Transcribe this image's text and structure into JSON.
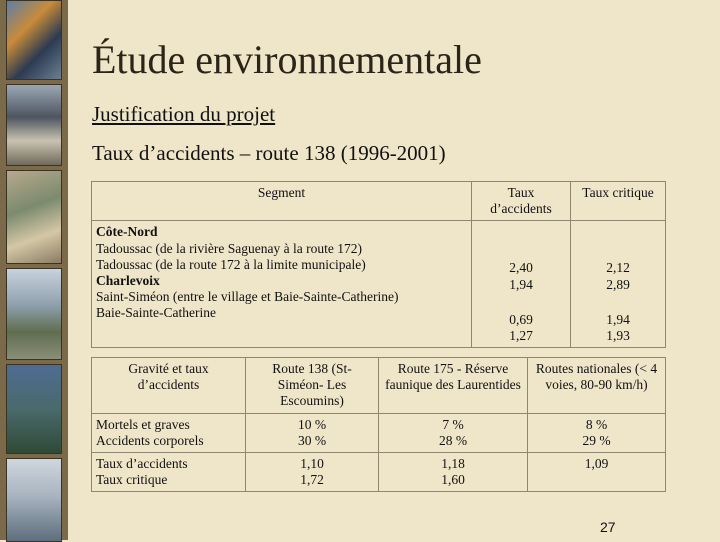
{
  "slide": {
    "title": "Étude environnementale",
    "subtitle": "Justification du projet",
    "heading": "Taux d’accidents – route 138 (1996-2001)",
    "page_number": "27"
  },
  "table1": {
    "headers": [
      "Segment",
      "Taux d’accidents",
      "Taux critique"
    ],
    "group1": {
      "name": "Côte-Nord",
      "rows": [
        {
          "segment": "Tadoussac (de la rivière Saguenay à la route 172)",
          "taux": "2,40",
          "critique": "2,12"
        },
        {
          "segment": "Tadoussac (de la route 172 à la limite municipale)",
          "taux": "1,94",
          "critique": "2,89"
        }
      ]
    },
    "group2": {
      "name": "Charlevoix",
      "rows": [
        {
          "segment": "Saint-Siméon (entre le village et Baie-Sainte-Catherine)",
          "taux": "0,69",
          "critique": "1,94"
        },
        {
          "segment": "Baie-Sainte-Catherine",
          "taux": "1,27",
          "critique": "1,93"
        }
      ]
    }
  },
  "table2": {
    "headers": [
      "Gravité et taux d’accidents",
      "Route 138 (St-Siméon- Les Escoumins)",
      "Route 175 - Réserve faunique des Laurentides",
      "Routes nationales (< 4 voies, 80-90 km/h)"
    ],
    "row1": {
      "labels": [
        "Mortels et graves",
        "Accidents corporels"
      ],
      "route138": [
        "10 %",
        "30 %"
      ],
      "route175": [
        "7 %",
        "28 %"
      ],
      "nationales": [
        "8 %",
        "29 %"
      ]
    },
    "row2": {
      "labels": [
        "Taux d’accidents",
        "Taux critique"
      ],
      "route138": [
        "1,10",
        "1,72"
      ],
      "route175": [
        "1,18",
        "1,60"
      ],
      "nationales": [
        "1,09"
      ]
    }
  }
}
